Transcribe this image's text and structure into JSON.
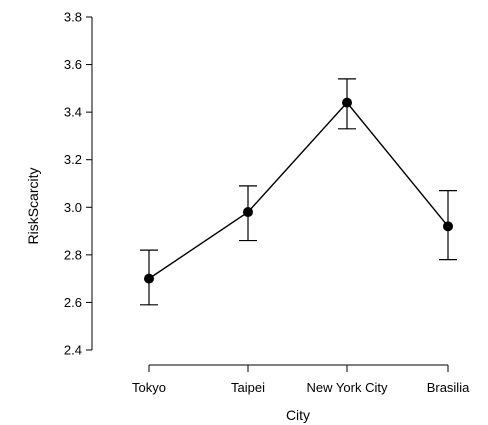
{
  "chart_data": {
    "type": "line",
    "xlabel": "City",
    "ylabel": "RiskScarcity",
    "categories": [
      "Tokyo",
      "Taipei",
      "New York City",
      "Brasilia"
    ],
    "values": [
      2.7,
      2.98,
      3.44,
      2.92
    ],
    "error_upper": [
      2.82,
      3.09,
      3.54,
      3.07
    ],
    "error_lower": [
      2.59,
      2.86,
      3.33,
      2.78
    ],
    "ylim": [
      2.4,
      3.8
    ],
    "yticks": [
      "2.4",
      "2.6",
      "2.8",
      "3.0",
      "3.2",
      "3.4",
      "3.6",
      "3.8"
    ],
    "grid": false,
    "legend": "none",
    "line_color": "#000000",
    "marker_color": "#000000"
  }
}
